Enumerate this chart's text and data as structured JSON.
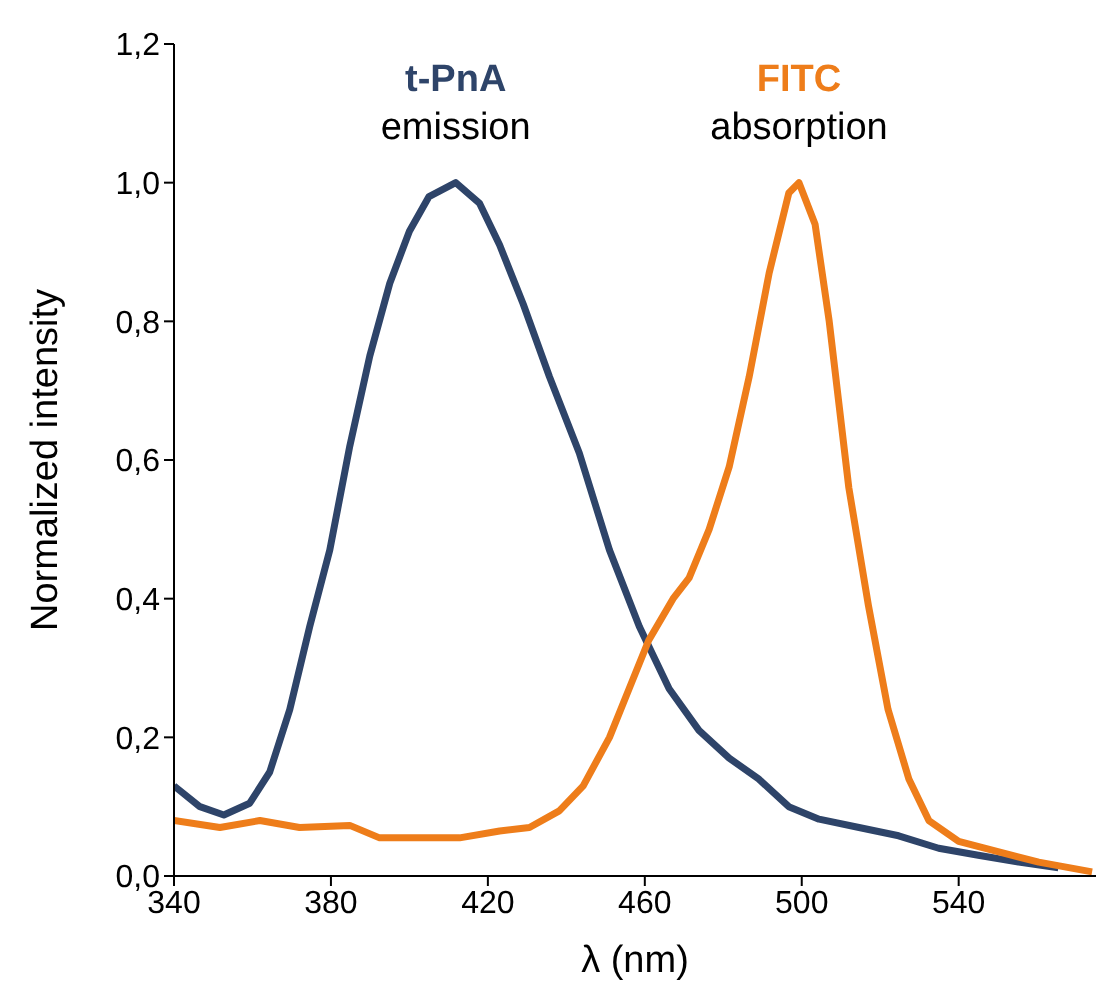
{
  "chart_data": {
    "type": "line",
    "xlabel": "λ (nm)",
    "ylabel": "Normalized intensity",
    "xlim": [
      340,
      575
    ],
    "xticks": [
      340,
      380,
      420,
      460,
      500,
      540
    ],
    "ylim": [
      0,
      1.2
    ],
    "yticks": [
      {
        "value": 0,
        "label": "0,0"
      },
      {
        "value": 0.2,
        "label": "0,2"
      },
      {
        "value": 0.4,
        "label": "0,4"
      },
      {
        "value": 0.6,
        "label": "0,6"
      },
      {
        "value": 0.8,
        "label": "0,8"
      },
      {
        "value": 1,
        "label": "1,0"
      },
      {
        "value": 1.2,
        "label": "1,2"
      }
    ],
    "grid": false,
    "legend": false,
    "marker": "none",
    "line_style": "solid",
    "annotations": [
      "emission",
      "absorption"
    ],
    "series": [
      {
        "name": "t-PnA",
        "color": "#2e4469",
        "x": [
          340,
          346.6,
          352.7,
          359.3,
          364.4,
          369.5,
          374.6,
          379.7,
          384.8,
          389.9,
          395,
          400,
          405,
          411.8,
          417.9,
          423,
          429,
          435.7,
          443.3,
          451,
          458.6,
          466.2,
          473.8,
          481.5,
          489,
          496.7,
          504.4,
          514.6,
          524.7,
          534.9,
          545,
          555.3,
          565.4
        ],
        "values": [
          0.13,
          0.1,
          0.088,
          0.105,
          0.15,
          0.24,
          0.36,
          0.47,
          0.62,
          0.75,
          0.855,
          0.93,
          0.98,
          1.0,
          0.97,
          0.91,
          0.825,
          0.72,
          0.61,
          0.47,
          0.36,
          0.27,
          0.21,
          0.17,
          0.14,
          0.1,
          0.082,
          0.07,
          0.058,
          0.04,
          0.03,
          0.02,
          0.012
        ]
      },
      {
        "name": "FITC",
        "color": "#ee7d1a",
        "x": [
          340,
          351.7,
          361.9,
          372,
          384.8,
          392.4,
          402.6,
          412.8,
          423,
          430.6,
          438.2,
          444.3,
          451,
          456,
          461,
          467.2,
          471.3,
          476.4,
          481.5,
          486.6,
          491.7,
          496.7,
          499.3,
          503.4,
          507,
          512,
          517,
          522,
          527.3,
          532.4,
          540,
          550,
          560.4,
          574
        ],
        "values": [
          0.08,
          0.07,
          0.08,
          0.07,
          0.073,
          0.055,
          0.055,
          0.055,
          0.065,
          0.07,
          0.094,
          0.13,
          0.2,
          0.27,
          0.34,
          0.4,
          0.43,
          0.5,
          0.59,
          0.72,
          0.87,
          0.985,
          1.0,
          0.94,
          0.8,
          0.56,
          0.39,
          0.24,
          0.14,
          0.08,
          0.05,
          0.035,
          0.02,
          0.006
        ]
      }
    ]
  }
}
